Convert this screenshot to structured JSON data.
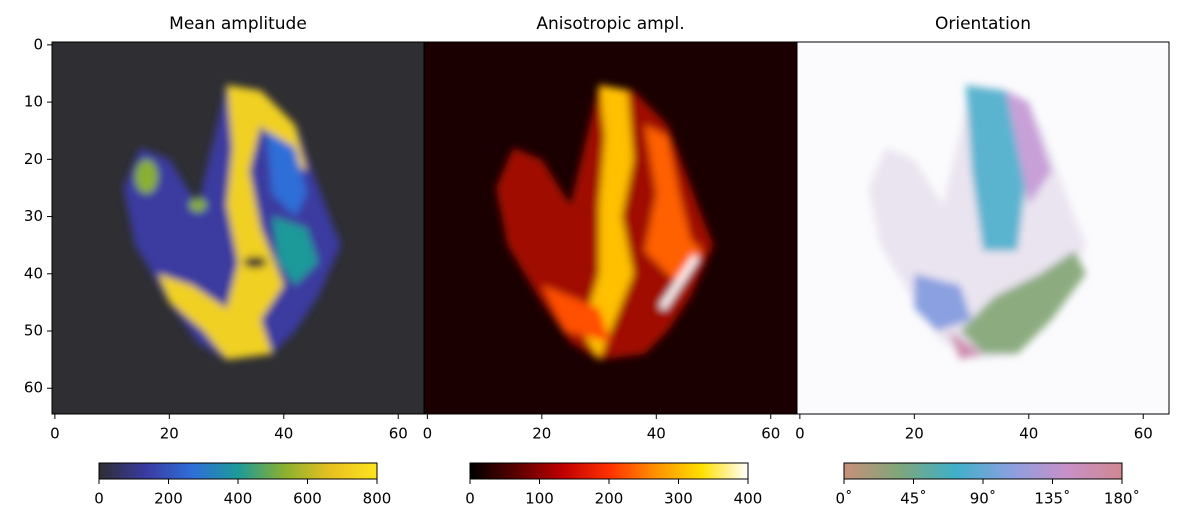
{
  "chart_data": [
    {
      "type": "image",
      "title": "Mean amplitude",
      "xlim": [
        -0.5,
        64.5
      ],
      "ylim": [
        64.5,
        -0.5
      ],
      "xticks": [
        0,
        20,
        40,
        60
      ],
      "yticks": [
        0,
        10,
        20,
        30,
        40,
        50,
        60
      ],
      "colorbar": {
        "lim": [
          0,
          800
        ],
        "ticks": [
          0,
          200,
          400,
          600,
          800
        ],
        "colors": [
          "#2e2e33",
          "#3a3aa0",
          "#2f6ed8",
          "#1d9a9a",
          "#8ab030",
          "#e8c020",
          "#fce51e"
        ]
      }
    },
    {
      "type": "image",
      "title": "Anisotropic ampl.",
      "xlim": [
        -0.5,
        64.5
      ],
      "ylim": [
        64.5,
        -0.5
      ],
      "xticks": [
        0,
        20,
        40,
        60
      ],
      "colorbar": {
        "lim": [
          0,
          400
        ],
        "ticks": [
          0,
          100,
          200,
          300,
          400
        ],
        "colors": [
          "#000000",
          "#5a0000",
          "#c00000",
          "#ff3000",
          "#ff9000",
          "#ffe000",
          "#ffffff"
        ]
      }
    },
    {
      "type": "image",
      "title": "Orientation",
      "xlim": [
        -0.5,
        64.5
      ],
      "ylim": [
        64.5,
        -0.5
      ],
      "xticks": [
        0,
        20,
        40,
        60
      ],
      "colorbar": {
        "lim": [
          0,
          180
        ],
        "ticks": [
          {
            "value": 0,
            "label": "0˚"
          },
          {
            "value": 45,
            "label": "45˚"
          },
          {
            "value": 90,
            "label": "90˚"
          },
          {
            "value": 135,
            "label": "135˚"
          },
          {
            "value": 180,
            "label": "180˚"
          }
        ],
        "colors": [
          "#c8907a",
          "#7fa67a",
          "#3fb0c8",
          "#8aa0e0",
          "#c890c8",
          "#d08890"
        ]
      }
    }
  ]
}
